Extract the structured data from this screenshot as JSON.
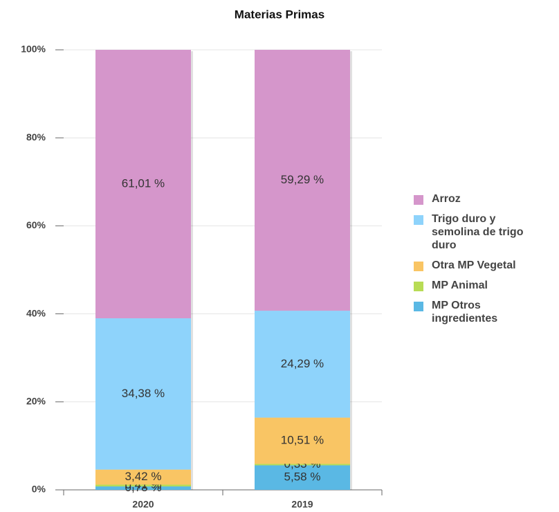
{
  "chart_data": {
    "type": "stacked_bar",
    "title": "Materias Primas",
    "categories": [
      "2020",
      "2019"
    ],
    "series": [
      {
        "name": "Arroz",
        "color": "#d596cb",
        "values": [
          61.01,
          59.29
        ],
        "value_labels": [
          "61,01 %",
          "59,29 %"
        ]
      },
      {
        "name": "Trigo duro y semolina de trigo duro",
        "color": "#8ed3fb",
        "values": [
          34.38,
          24.29
        ],
        "value_labels": [
          "34,38 %",
          "24,29 %"
        ]
      },
      {
        "name": "Otra MP Vegetal",
        "color": "#f9c564",
        "values": [
          3.42,
          10.51
        ],
        "value_labels": [
          "3,42 %",
          "10,51 %"
        ]
      },
      {
        "name": "MP Animal",
        "color": "#b8dc55",
        "values": [
          0.41,
          0.33
        ],
        "value_labels": [
          "0,41 %",
          "0,33 %"
        ]
      },
      {
        "name": "MP Otros ingredientes",
        "color": "#5ab8e4",
        "values": [
          0.78,
          5.58
        ],
        "value_labels": [
          "0,78 %",
          "5,58 %"
        ]
      }
    ],
    "ylim": [
      0,
      100
    ],
    "yticks": [
      {
        "value": 0,
        "label": "0%"
      },
      {
        "value": 20,
        "label": "20%"
      },
      {
        "value": 40,
        "label": "40%"
      },
      {
        "value": 60,
        "label": "60%"
      },
      {
        "value": 80,
        "label": "80%"
      },
      {
        "value": 100,
        "label": "100%"
      }
    ],
    "grid": true,
    "legend": "right"
  }
}
